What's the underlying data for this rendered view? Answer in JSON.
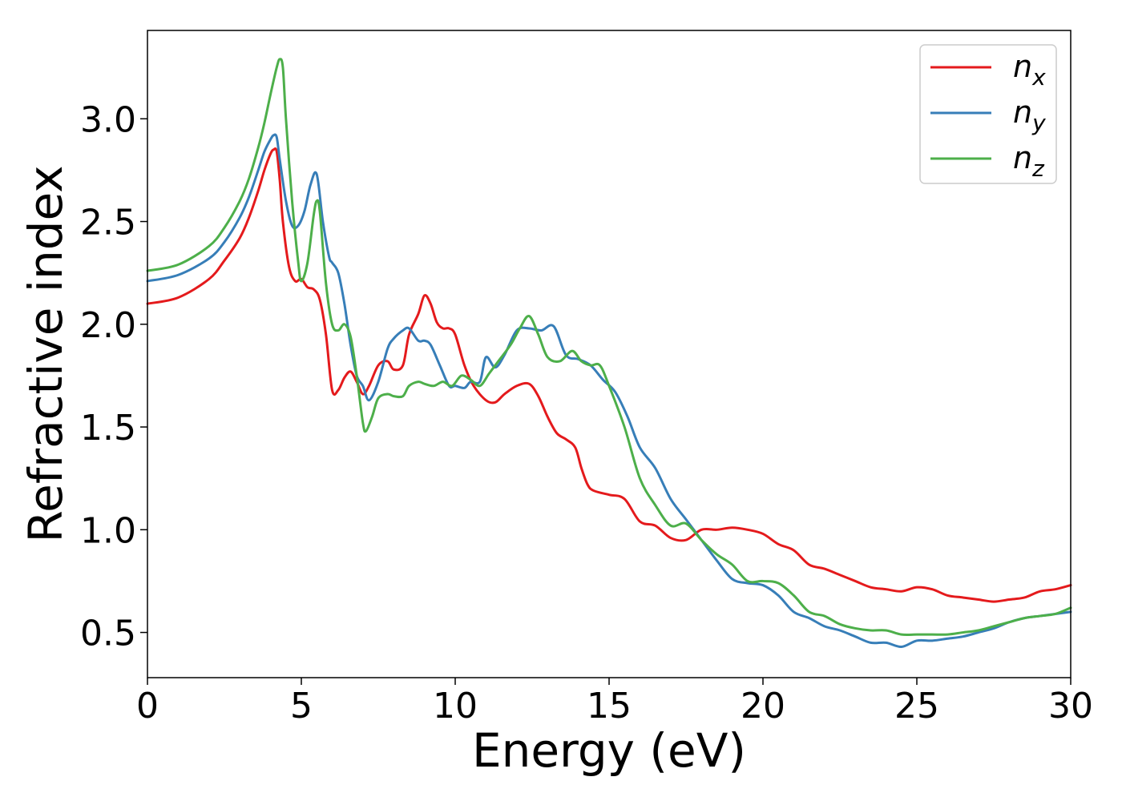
{
  "chart_data": {
    "type": "line",
    "title": "",
    "xlabel": "Energy (eV)",
    "ylabel": "Refractive index",
    "xlim": [
      0,
      30
    ],
    "ylim": [
      0.28,
      3.43
    ],
    "xticks": [
      0,
      5,
      10,
      15,
      20,
      25,
      30
    ],
    "yticks": [
      0.5,
      1.0,
      1.5,
      2.0,
      2.5,
      3.0
    ],
    "xtick_labels": [
      "0",
      "5",
      "10",
      "15",
      "20",
      "25",
      "30"
    ],
    "ytick_labels": [
      "0.5",
      "1.0",
      "1.5",
      "2.0",
      "2.5",
      "3.0"
    ],
    "grid": false,
    "legend_position": "top-right",
    "series": [
      {
        "name": "n",
        "subscript": "x",
        "color": "#e41a1c",
        "x": [
          0,
          1,
          2,
          2.5,
          3,
          3.3,
          3.6,
          3.8,
          4.0,
          4.1,
          4.2,
          4.3,
          4.4,
          4.6,
          4.8,
          5.0,
          5.2,
          5.4,
          5.6,
          5.8,
          6.0,
          6.2,
          6.4,
          6.6,
          6.8,
          7.0,
          7.2,
          7.5,
          7.8,
          8.0,
          8.3,
          8.5,
          8.8,
          9.0,
          9.2,
          9.4,
          9.6,
          9.8,
          10.0,
          10.3,
          10.6,
          11.0,
          11.3,
          11.6,
          12.0,
          12.4,
          12.7,
          13.0,
          13.3,
          13.6,
          13.9,
          14.1,
          14.3,
          14.5,
          15.0,
          15.5,
          16.0,
          16.5,
          17.0,
          17.5,
          18.0,
          18.5,
          19.0,
          19.5,
          20.0,
          20.5,
          21.0,
          21.5,
          22.0,
          22.5,
          23.0,
          23.5,
          24.0,
          24.5,
          25.0,
          25.5,
          26.0,
          26.5,
          27.0,
          27.5,
          28.0,
          28.5,
          29.0,
          29.5,
          30.0
        ],
        "y": [
          2.1,
          2.13,
          2.22,
          2.31,
          2.42,
          2.52,
          2.65,
          2.75,
          2.83,
          2.85,
          2.84,
          2.7,
          2.5,
          2.28,
          2.21,
          2.22,
          2.18,
          2.17,
          2.12,
          1.95,
          1.68,
          1.68,
          1.74,
          1.77,
          1.72,
          1.66,
          1.7,
          1.8,
          1.82,
          1.78,
          1.8,
          1.95,
          2.05,
          2.14,
          2.1,
          2.01,
          1.98,
          1.98,
          1.95,
          1.8,
          1.7,
          1.63,
          1.62,
          1.66,
          1.7,
          1.71,
          1.65,
          1.55,
          1.47,
          1.44,
          1.4,
          1.3,
          1.22,
          1.19,
          1.17,
          1.15,
          1.04,
          1.02,
          0.96,
          0.95,
          1.0,
          1.0,
          1.01,
          1.0,
          0.98,
          0.93,
          0.9,
          0.83,
          0.81,
          0.78,
          0.75,
          0.72,
          0.71,
          0.7,
          0.72,
          0.71,
          0.68,
          0.67,
          0.66,
          0.65,
          0.66,
          0.67,
          0.7,
          0.71,
          0.73
        ]
      },
      {
        "name": "n",
        "subscript": "y",
        "color": "#377eb8",
        "x": [
          0,
          1,
          2,
          2.5,
          3,
          3.3,
          3.6,
          3.8,
          4.0,
          4.1,
          4.2,
          4.3,
          4.5,
          4.7,
          4.9,
          5.1,
          5.3,
          5.5,
          5.7,
          5.9,
          6.0,
          6.2,
          6.4,
          6.6,
          6.8,
          7.0,
          7.2,
          7.5,
          7.8,
          8.0,
          8.3,
          8.5,
          8.8,
          9.0,
          9.2,
          9.5,
          9.8,
          10.0,
          10.3,
          10.5,
          10.8,
          11.0,
          11.3,
          11.6,
          12.0,
          12.4,
          12.8,
          13.2,
          13.6,
          14.0,
          14.4,
          14.8,
          15.2,
          15.6,
          16.0,
          16.5,
          17.0,
          17.5,
          18.0,
          18.5,
          19.0,
          19.5,
          20.0,
          20.5,
          21.0,
          21.5,
          22.0,
          22.5,
          23.0,
          23.5,
          24.0,
          24.5,
          25.0,
          25.5,
          26.0,
          26.5,
          27.0,
          27.5,
          28.0,
          28.5,
          29.0,
          29.5,
          30.0
        ],
        "y": [
          2.21,
          2.24,
          2.32,
          2.4,
          2.52,
          2.62,
          2.75,
          2.84,
          2.9,
          2.92,
          2.91,
          2.8,
          2.6,
          2.48,
          2.48,
          2.55,
          2.68,
          2.73,
          2.5,
          2.33,
          2.3,
          2.25,
          2.1,
          1.9,
          1.75,
          1.7,
          1.63,
          1.72,
          1.88,
          1.93,
          1.97,
          1.98,
          1.92,
          1.92,
          1.9,
          1.8,
          1.7,
          1.7,
          1.69,
          1.72,
          1.72,
          1.84,
          1.79,
          1.85,
          1.97,
          1.98,
          1.97,
          1.99,
          1.85,
          1.83,
          1.8,
          1.73,
          1.67,
          1.55,
          1.4,
          1.3,
          1.15,
          1.05,
          0.95,
          0.85,
          0.76,
          0.74,
          0.73,
          0.68,
          0.6,
          0.57,
          0.53,
          0.51,
          0.48,
          0.45,
          0.45,
          0.43,
          0.46,
          0.46,
          0.47,
          0.48,
          0.5,
          0.52,
          0.55,
          0.57,
          0.58,
          0.59,
          0.6
        ]
      },
      {
        "name": "n",
        "subscript": "z",
        "color": "#4daf4a",
        "x": [
          0,
          1,
          2,
          2.5,
          3,
          3.3,
          3.6,
          3.8,
          4.0,
          4.2,
          4.3,
          4.4,
          4.5,
          4.7,
          4.9,
          5.0,
          5.2,
          5.4,
          5.5,
          5.6,
          5.8,
          6.0,
          6.2,
          6.4,
          6.6,
          6.8,
          7.0,
          7.1,
          7.3,
          7.5,
          7.8,
          8.0,
          8.3,
          8.5,
          8.8,
          9.0,
          9.3,
          9.6,
          9.9,
          10.2,
          10.5,
          10.8,
          11.1,
          11.4,
          11.8,
          12.1,
          12.4,
          12.7,
          13.0,
          13.4,
          13.8,
          14.1,
          14.4,
          14.7,
          15.0,
          15.5,
          16.0,
          16.5,
          17.0,
          17.5,
          18.0,
          18.5,
          19.0,
          19.5,
          20.0,
          20.5,
          21.0,
          21.5,
          22.0,
          22.5,
          23.0,
          23.5,
          24.0,
          24.5,
          25.0,
          25.5,
          26.0,
          26.5,
          27.0,
          27.5,
          28.0,
          28.5,
          29.0,
          29.5,
          30.0
        ],
        "y": [
          2.26,
          2.29,
          2.38,
          2.47,
          2.6,
          2.71,
          2.86,
          2.98,
          3.12,
          3.25,
          3.29,
          3.25,
          3.0,
          2.6,
          2.3,
          2.21,
          2.3,
          2.53,
          2.6,
          2.55,
          2.2,
          2.0,
          1.97,
          2.0,
          1.94,
          1.75,
          1.52,
          1.48,
          1.55,
          1.64,
          1.66,
          1.65,
          1.65,
          1.7,
          1.72,
          1.71,
          1.7,
          1.72,
          1.7,
          1.75,
          1.73,
          1.7,
          1.76,
          1.82,
          1.9,
          1.98,
          2.04,
          1.95,
          1.84,
          1.82,
          1.87,
          1.82,
          1.8,
          1.8,
          1.7,
          1.5,
          1.25,
          1.12,
          1.02,
          1.03,
          0.95,
          0.88,
          0.83,
          0.75,
          0.75,
          0.74,
          0.68,
          0.6,
          0.58,
          0.54,
          0.52,
          0.51,
          0.51,
          0.49,
          0.49,
          0.49,
          0.49,
          0.5,
          0.51,
          0.53,
          0.55,
          0.57,
          0.58,
          0.59,
          0.62
        ]
      }
    ]
  }
}
